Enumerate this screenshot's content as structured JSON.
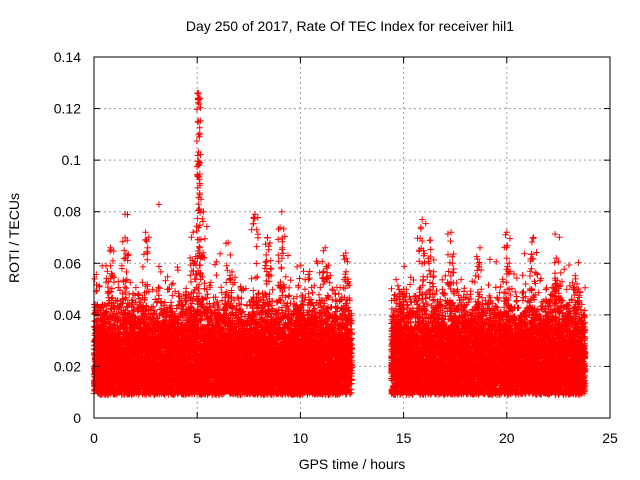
{
  "chart_data": {
    "type": "scatter",
    "title": "Day 250 of 2017, Rate Of TEC Index for receiver hil1",
    "xlabel": "GPS time / hours",
    "ylabel": "ROTI / TECUs",
    "xlim": [
      0,
      25
    ],
    "ylim": [
      0,
      0.14
    ],
    "x_ticks": [
      0,
      5,
      10,
      15,
      20,
      25
    ],
    "x_tick_labels": [
      "0",
      "5",
      "10",
      "15",
      "20",
      "25"
    ],
    "y_ticks": [
      0,
      0.02,
      0.04,
      0.06,
      0.08,
      0.1,
      0.12,
      0.14
    ],
    "y_tick_labels": [
      "0",
      "0.02",
      "0.04",
      "0.06",
      "0.08",
      "0.1",
      "0.12",
      "0.14"
    ],
    "grid": true,
    "marker": "+",
    "series": [
      {
        "name": "ROTI",
        "color": "#ff0000",
        "segments": [
          {
            "x_start": 0.0,
            "x_end": 12.5
          },
          {
            "x_start": 14.4,
            "x_end": 23.8
          }
        ],
        "typical_band": [
          0.01,
          0.04
        ],
        "peaks": [
          {
            "x": 0.8,
            "y": 0.066
          },
          {
            "x": 1.5,
            "y": 0.079
          },
          {
            "x": 2.5,
            "y": 0.072
          },
          {
            "x": 4.8,
            "y": 0.072
          },
          {
            "x": 5.05,
            "y": 0.126
          },
          {
            "x": 5.1,
            "y": 0.124
          },
          {
            "x": 5.3,
            "y": 0.08
          },
          {
            "x": 6.5,
            "y": 0.068
          },
          {
            "x": 7.8,
            "y": 0.079
          },
          {
            "x": 8.4,
            "y": 0.07
          },
          {
            "x": 9.1,
            "y": 0.08
          },
          {
            "x": 11.2,
            "y": 0.066
          },
          {
            "x": 12.2,
            "y": 0.064
          },
          {
            "x": 15.9,
            "y": 0.077
          },
          {
            "x": 16.3,
            "y": 0.069
          },
          {
            "x": 17.3,
            "y": 0.072
          },
          {
            "x": 18.7,
            "y": 0.066
          },
          {
            "x": 20.0,
            "y": 0.072
          },
          {
            "x": 21.3,
            "y": 0.07
          },
          {
            "x": 22.4,
            "y": 0.062
          },
          {
            "x": 23.4,
            "y": 0.052
          }
        ]
      }
    ]
  }
}
